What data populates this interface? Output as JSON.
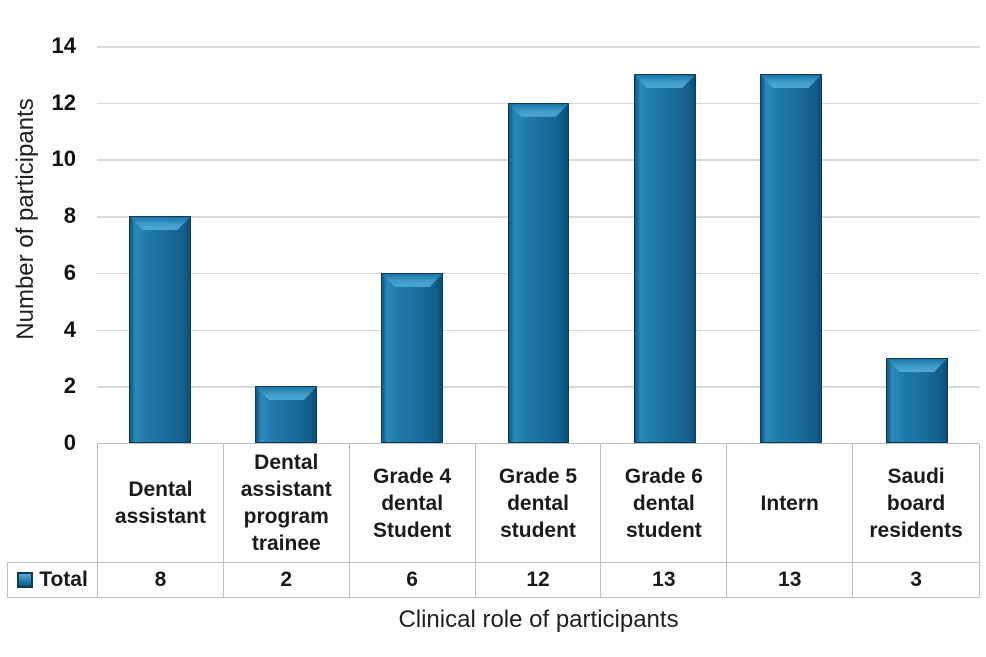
{
  "chart_data": {
    "type": "bar",
    "title": "",
    "categories": [
      "Dental assistant",
      "Dental assistant program trainee",
      "Grade 4 dental Student",
      "Grade 5 dental student",
      "Grade 6 dental student",
      "Intern",
      "Saudi board residents"
    ],
    "series": [
      {
        "name": "Total",
        "values": [
          8,
          2,
          6,
          12,
          13,
          13,
          3
        ]
      }
    ],
    "xlabel": "Clinical role of participants",
    "ylabel": "Number of participants",
    "ylim": [
      0,
      14
    ],
    "y_ticks_desc": [
      "14",
      "12",
      "10",
      "8",
      "6",
      "4",
      "2",
      "0"
    ],
    "grid": true,
    "legend_position": "bottom-table-row",
    "colors": {
      "bar_fill": "#1B6F9E",
      "bar_edge": "#0A3D5C",
      "bar_highlight": "#4FA6D2",
      "gridline": "#D9D9D9",
      "table_border": "#BFBFBF",
      "text": "#1A1A1A"
    }
  }
}
